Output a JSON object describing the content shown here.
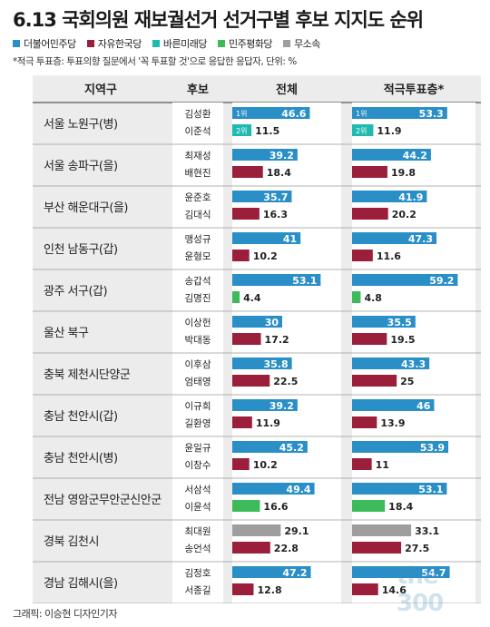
{
  "title": "6.13 국회의원 재보궐선거 선거구별 후보 지지도 순위",
  "legend": [
    {
      "label": "더불어민주당",
      "color": "#2a8fc7"
    },
    {
      "label": "자유한국당",
      "color": "#9b1e3b"
    },
    {
      "label": "바른미래당",
      "color": "#1fb9b0"
    },
    {
      "label": "민주평화당",
      "color": "#3dba59"
    },
    {
      "label": "무소속",
      "color": "#9e9e9e"
    }
  ],
  "note": "*적극 투표층: 투표의향 질문에서 '꼭 투표할 것'으로 응답한 응답자, 단위: %",
  "credit": "그래픽: 이승현 디자인기자",
  "watermark": "the 300",
  "chart_data": {
    "type": "bar",
    "columns": [
      "지역구",
      "후보",
      "전체",
      "적극투표층*"
    ],
    "rank_labels": [
      "1위",
      "2위"
    ],
    "rows": [
      {
        "district": "서울 노원구(병)",
        "candidates": [
          {
            "name": "김성환",
            "party": "더불어민주당",
            "total": 46.6,
            "active": 53.3,
            "rank": "1위"
          },
          {
            "name": "이준석",
            "party": "바른미래당",
            "total": 11.5,
            "active": 11.9,
            "rank": "2위"
          }
        ]
      },
      {
        "district": "서울 송파구(을)",
        "candidates": [
          {
            "name": "최재성",
            "party": "더불어민주당",
            "total": 39.2,
            "active": 44.2
          },
          {
            "name": "배현진",
            "party": "자유한국당",
            "total": 18.4,
            "active": 19.8
          }
        ]
      },
      {
        "district": "부산 해운대구(을)",
        "candidates": [
          {
            "name": "윤준호",
            "party": "더불어민주당",
            "total": 35.7,
            "active": 41.9
          },
          {
            "name": "김대식",
            "party": "자유한국당",
            "total": 16.3,
            "active": 20.2
          }
        ]
      },
      {
        "district": "인천 남동구(갑)",
        "candidates": [
          {
            "name": "맹성규",
            "party": "더불어민주당",
            "total": 41,
            "active": 47.3
          },
          {
            "name": "윤형모",
            "party": "자유한국당",
            "total": 10.2,
            "active": 11.6
          }
        ]
      },
      {
        "district": "광주 서구(갑)",
        "candidates": [
          {
            "name": "송갑석",
            "party": "더불어민주당",
            "total": 53.1,
            "active": 59.2
          },
          {
            "name": "김명진",
            "party": "민주평화당",
            "total": 4.4,
            "active": 4.8
          }
        ]
      },
      {
        "district": "울산 북구",
        "candidates": [
          {
            "name": "이상헌",
            "party": "더불어민주당",
            "total": 30,
            "active": 35.5
          },
          {
            "name": "박대동",
            "party": "자유한국당",
            "total": 17.2,
            "active": 19.5
          }
        ]
      },
      {
        "district": "충북 제천시단양군",
        "candidates": [
          {
            "name": "이후삼",
            "party": "더불어민주당",
            "total": 35.8,
            "active": 43.3
          },
          {
            "name": "엄태영",
            "party": "자유한국당",
            "total": 22.5,
            "active": 25
          }
        ]
      },
      {
        "district": "충남 천안시(갑)",
        "candidates": [
          {
            "name": "이규희",
            "party": "더불어민주당",
            "total": 39.2,
            "active": 46
          },
          {
            "name": "길환영",
            "party": "자유한국당",
            "total": 11.9,
            "active": 13.9
          }
        ]
      },
      {
        "district": "충남 천안시(병)",
        "candidates": [
          {
            "name": "윤일규",
            "party": "더불어민주당",
            "total": 45.2,
            "active": 53.9
          },
          {
            "name": "이창수",
            "party": "자유한국당",
            "total": 10.2,
            "active": 11
          }
        ]
      },
      {
        "district": "전남 영암군무안군신안군",
        "candidates": [
          {
            "name": "서삼석",
            "party": "더불어민주당",
            "total": 49.4,
            "active": 53.1
          },
          {
            "name": "이윤석",
            "party": "민주평화당",
            "total": 16.6,
            "active": 18.4
          }
        ]
      },
      {
        "district": "경북 김천시",
        "candidates": [
          {
            "name": "최대원",
            "party": "무소속",
            "total": 29.1,
            "active": 33.1
          },
          {
            "name": "송언석",
            "party": "자유한국당",
            "total": 22.8,
            "active": 27.5
          }
        ]
      },
      {
        "district": "경남 김해시(을)",
        "candidates": [
          {
            "name": "김정호",
            "party": "더불어민주당",
            "total": 47.2,
            "active": 54.7
          },
          {
            "name": "서종길",
            "party": "자유한국당",
            "total": 12.8,
            "active": 14.6
          }
        ]
      }
    ]
  }
}
